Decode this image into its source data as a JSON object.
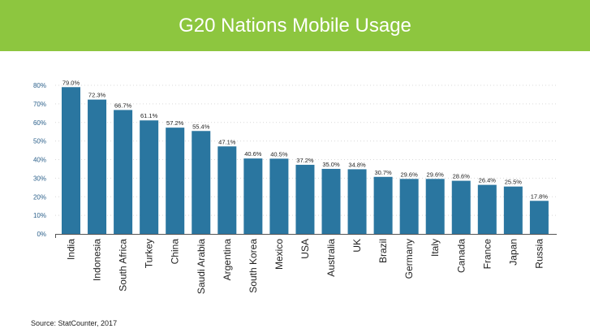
{
  "header": {
    "title": "G20 Nations Mobile Usage"
  },
  "footer": {
    "source": "Source: StatCounter, 2017"
  },
  "colors": {
    "header_bg": "#8dc63f",
    "bar": "#2a76a0",
    "tick_label": "#2a5f8a",
    "grid": "#d9d9d9"
  },
  "chart_data": {
    "type": "bar",
    "categories": [
      "India",
      "Indonesia",
      "South Africa",
      "Turkey",
      "China",
      "Saudi Arabia",
      "Argentina",
      "South Korea",
      "Mexico",
      "USA",
      "Australia",
      "UK",
      "Brazil",
      "Germany",
      "Italy",
      "Canada",
      "France",
      "Japan",
      "Russia"
    ],
    "values": [
      79.0,
      72.3,
      66.7,
      61.1,
      57.2,
      55.4,
      47.1,
      40.6,
      40.5,
      37.2,
      35.0,
      34.8,
      30.7,
      29.6,
      29.6,
      28.6,
      26.4,
      25.5,
      17.8
    ],
    "data_labels": [
      "79.0%",
      "72.3%",
      "66.7%",
      "61.1%",
      "57.2%",
      "55.4%",
      "47.1%",
      "40.6%",
      "40.5%",
      "37.2%",
      "35.0%",
      "34.8%",
      "30.7%",
      "29.6%",
      "29.6%",
      "28.6%",
      "26.4%",
      "25.5%",
      "17.8%"
    ],
    "yticks": [
      "0%",
      "10%",
      "20%",
      "30%",
      "40%",
      "50%",
      "60%",
      "70%",
      "80%"
    ],
    "ylim": [
      0,
      80
    ],
    "grid": true,
    "title": "",
    "xlabel": "",
    "ylabel": ""
  }
}
